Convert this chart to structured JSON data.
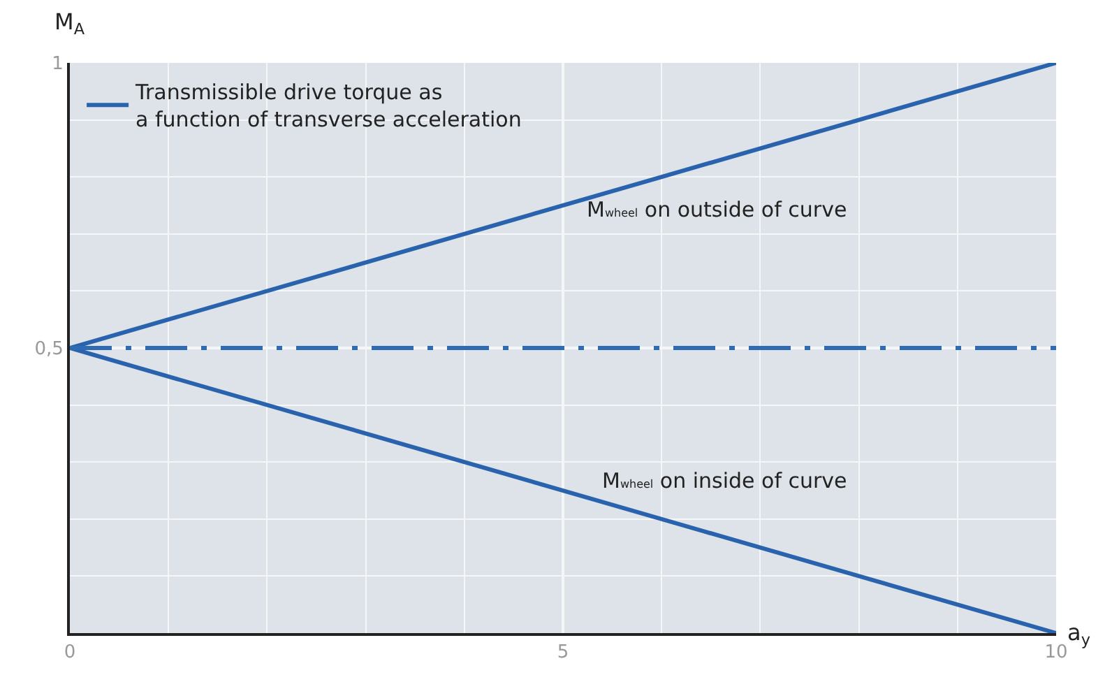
{
  "chart_data": {
    "type": "line",
    "xlabel": "a$_{y}$",
    "ylabel": "M$_{A}$",
    "x": [
      0,
      10
    ],
    "series": [
      {
        "name": "Transmissible drive torque as a function of transverse acceleration",
        "color": "#2a63ad",
        "values": [
          0.5,
          1
        ]
      },
      {
        "color": "#2a63ad",
        "values": [
          0.5,
          0
        ]
      }
    ],
    "xlim": [
      0,
      10
    ],
    "ylim": [
      0,
      1
    ],
    "xticks": [
      0,
      5,
      10
    ],
    "yticks": [
      {
        "value": 0.5,
        "label": "0,5"
      },
      1
    ],
    "ref_lines": [
      {
        "axis": "y",
        "value": 0.5,
        "color": "#2f6bb3",
        "line_style": "dashdot"
      }
    ],
    "annotations": [
      "M$_{wheel}$ on outside of curve",
      "M$_{wheel}$ on inside of curve"
    ],
    "grid": true,
    "legend": "top left",
    "marker": "none",
    "line_style": "solid"
  }
}
